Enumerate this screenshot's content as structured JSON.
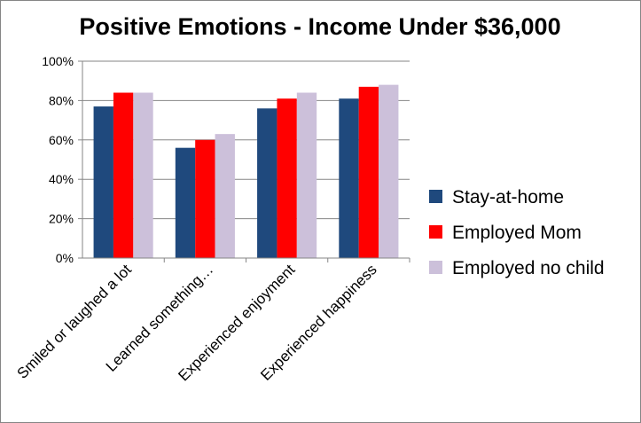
{
  "chart_data": {
    "type": "bar",
    "title": "Positive Emotions - Income Under $36,000",
    "categories": [
      "Smiled or laughed a lot",
      "Learned something…",
      "Experienced enjoyment",
      "Experienced happiness"
    ],
    "series": [
      {
        "name": "Stay-at-home",
        "color": "#1F497D",
        "values": [
          0.77,
          0.56,
          0.76,
          0.81
        ]
      },
      {
        "name": "Employed Mom",
        "color": "#FF0000",
        "values": [
          0.84,
          0.6,
          0.81,
          0.87
        ]
      },
      {
        "name": "Employed no child",
        "color": "#CCC0DA",
        "values": [
          0.84,
          0.63,
          0.84,
          0.88
        ]
      }
    ],
    "yticks": [
      "0%",
      "20%",
      "40%",
      "60%",
      "80%",
      "100%"
    ],
    "ylim": [
      0,
      1
    ],
    "grid": true,
    "legend_position": "right",
    "xlabel": "",
    "ylabel": ""
  }
}
